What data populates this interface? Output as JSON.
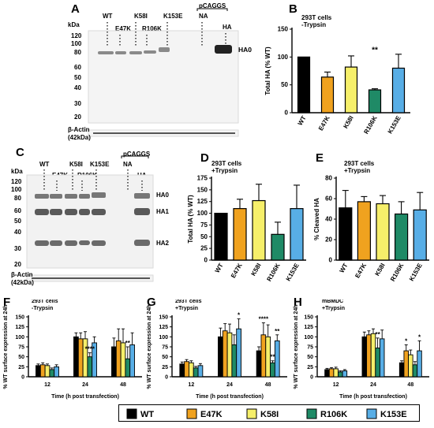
{
  "panels": [
    "A",
    "B",
    "C",
    "D",
    "E",
    "F",
    "G",
    "H"
  ],
  "blot_a": {
    "kda_label": "kDa",
    "markers": [
      "120",
      "100",
      "80",
      "60",
      "50",
      "40",
      "30",
      "20"
    ],
    "lanes_top": [
      "WT",
      "K58I",
      "K153E"
    ],
    "lanes_bottom": [
      "E47K",
      "R106K"
    ],
    "vector_label": "pCAGGS",
    "vector_lanes": [
      "NA",
      "HA"
    ],
    "band_label": "HA0",
    "actin_label_1": "β-Actin",
    "actin_label_2": "(42kDa)"
  },
  "blot_c": {
    "kda_label": "kDa",
    "markers": [
      "120",
      "100",
      "80",
      "60",
      "50",
      "40",
      "30",
      "20"
    ],
    "lanes_top": [
      "WT",
      "K58I",
      "K153E"
    ],
    "lanes_bottom": [
      "E47K",
      "R106K"
    ],
    "vector_label": "pCAGGS",
    "vector_lanes": [
      "NA",
      "HA"
    ],
    "band_labels": [
      "HA0",
      "HA1",
      "HA2"
    ],
    "actin_label_1": "β-Actin",
    "actin_label_2": "(42kDa)"
  },
  "colors": {
    "WT": "#000000",
    "E47K": "#f0a21f",
    "K58I": "#f6ef6a",
    "R106K": "#1f8a66",
    "K153E": "#58aee6"
  },
  "chart_data": [
    {
      "panel": "B",
      "type": "bar",
      "annotation": [
        "293T cells",
        "-Trypsin"
      ],
      "ylabel": "Total HA (% WT)",
      "ylim": [
        0,
        150
      ],
      "yticks": [
        "0",
        "50",
        "100",
        "150"
      ],
      "categories": [
        "WT",
        "E47K",
        "K58I",
        "R106K",
        "K153E"
      ],
      "values": [
        100,
        64,
        82,
        41,
        80
      ],
      "errors": [
        0,
        9,
        20,
        2,
        25
      ],
      "significance": [
        {
          "category": "R106K",
          "label": "**"
        }
      ]
    },
    {
      "panel": "D",
      "type": "bar",
      "annotation": [
        "293T cells",
        "+Trypsin"
      ],
      "ylabel": "Total HA (% WT)",
      "ylim": [
        0,
        175
      ],
      "yticks": [
        "0",
        "25",
        "50",
        "75",
        "100",
        "125",
        "150",
        "175"
      ],
      "categories": [
        "WT",
        "E47K",
        "K58I",
        "R106K",
        "K153E"
      ],
      "values": [
        100,
        110,
        127,
        55,
        110
      ],
      "errors": [
        0,
        20,
        35,
        26,
        50
      ]
    },
    {
      "panel": "E",
      "type": "bar",
      "annotation": [
        "293T cells",
        "+Trypsin"
      ],
      "ylabel": "% Cleaved HA",
      "ylim": [
        0,
        80
      ],
      "yticks": [
        "0",
        "20",
        "40",
        "60",
        "80"
      ],
      "categories": [
        "WT",
        "E47K",
        "K58I",
        "R106K",
        "K153E"
      ],
      "values": [
        51,
        57,
        55,
        45,
        49
      ],
      "errors": [
        17,
        5,
        8,
        12,
        17
      ]
    },
    {
      "panel": "F",
      "type": "bar",
      "annotation": [
        "293T cells",
        "-Trypsin"
      ],
      "ylabel": "% WT surface expression at 24h",
      "xlabel": "Time (h post transfection)",
      "ylim": [
        0,
        150
      ],
      "yticks": [
        "0",
        "25",
        "50",
        "75",
        "100",
        "125",
        "150"
      ],
      "categories": [
        "12",
        "24",
        "48"
      ],
      "series": [
        {
          "name": "WT",
          "values": [
            28,
            100,
            75
          ],
          "errors": [
            4,
            10,
            22
          ]
        },
        {
          "name": "E47K",
          "values": [
            30,
            95,
            90
          ],
          "errors": [
            5,
            15,
            30
          ]
        },
        {
          "name": "K58I",
          "values": [
            28,
            95,
            85
          ],
          "errors": [
            4,
            18,
            35
          ]
        },
        {
          "name": "R106K",
          "values": [
            18,
            50,
            45
          ],
          "errors": [
            4,
            10,
            30
          ]
        },
        {
          "name": "K153E",
          "values": [
            25,
            85,
            80
          ],
          "errors": [
            5,
            15,
            30
          ]
        }
      ],
      "significance": [
        {
          "category": "24",
          "series": "R106K",
          "label": "****"
        },
        {
          "category": "48",
          "series": "R106K",
          "label": "**"
        }
      ]
    },
    {
      "panel": "G",
      "type": "bar",
      "annotation": [
        "293T cells",
        "+Trypsin"
      ],
      "ylabel": "% WT surface expression at 24h",
      "xlabel": "Time (h post transfection)",
      "ylim": [
        0,
        150
      ],
      "yticks": [
        "0",
        "25",
        "50",
        "75",
        "100",
        "125",
        "150"
      ],
      "categories": [
        "12",
        "24",
        "48"
      ],
      "series": [
        {
          "name": "WT",
          "values": [
            32,
            100,
            65
          ],
          "errors": [
            5,
            22,
            10
          ]
        },
        {
          "name": "E47K",
          "values": [
            38,
            115,
            105
          ],
          "errors": [
            5,
            18,
            30
          ]
        },
        {
          "name": "K58I",
          "values": [
            35,
            110,
            100
          ],
          "errors": [
            5,
            22,
            30
          ]
        },
        {
          "name": "R106K",
          "values": [
            22,
            80,
            35
          ],
          "errors": [
            4,
            25,
            5
          ]
        },
        {
          "name": "K153E",
          "values": [
            28,
            120,
            90
          ],
          "errors": [
            5,
            25,
            15
          ]
        }
      ],
      "significance": [
        {
          "category": "24",
          "series": "K153E",
          "label": "*"
        },
        {
          "category": "48",
          "series": "E47K",
          "label": "****"
        },
        {
          "category": "48",
          "series": "R106K",
          "label": "**"
        },
        {
          "category": "48",
          "series": "K153E",
          "label": "**"
        }
      ]
    },
    {
      "panel": "H",
      "type": "bar",
      "annotation": [
        "mBMDC",
        "+Trypsin"
      ],
      "ylabel": "% WT surface expression at 24h",
      "xlabel": "Time (h post transfection)",
      "ylim": [
        0,
        150
      ],
      "yticks": [
        "0",
        "25",
        "50",
        "75",
        "100",
        "125",
        "150"
      ],
      "categories": [
        "12",
        "24",
        "48"
      ],
      "series": [
        {
          "name": "WT",
          "values": [
            18,
            100,
            35
          ],
          "errors": [
            3,
            12,
            5
          ]
        },
        {
          "name": "E47K",
          "values": [
            20,
            105,
            65
          ],
          "errors": [
            3,
            10,
            15
          ]
        },
        {
          "name": "K58I",
          "values": [
            20,
            108,
            55
          ],
          "errors": [
            4,
            12,
            12
          ]
        },
        {
          "name": "R106K",
          "values": [
            12,
            72,
            30
          ],
          "errors": [
            3,
            25,
            8
          ]
        },
        {
          "name": "K153E",
          "values": [
            15,
            95,
            65
          ],
          "errors": [
            3,
            22,
            25
          ]
        }
      ],
      "significance": [
        {
          "category": "24",
          "series": "R106K",
          "label": "**"
        },
        {
          "category": "48",
          "series": "E47K",
          "label": "*"
        },
        {
          "category": "48",
          "series": "K153E",
          "label": "*"
        }
      ]
    }
  ],
  "legend": {
    "items": [
      {
        "name": "WT",
        "color": "#000000"
      },
      {
        "name": "E47K",
        "color": "#f0a21f"
      },
      {
        "name": "K58I",
        "color": "#f6ef6a"
      },
      {
        "name": "R106K",
        "color": "#1f8a66"
      },
      {
        "name": "K153E",
        "color": "#58aee6"
      }
    ]
  }
}
